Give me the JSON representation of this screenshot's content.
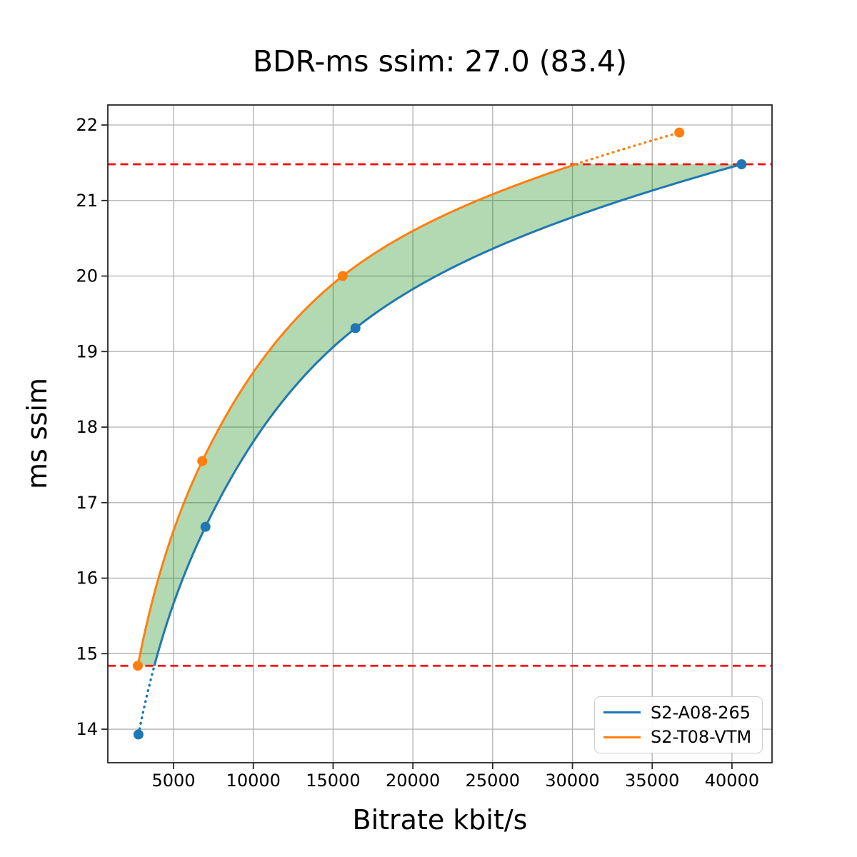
{
  "chart_data": {
    "type": "line",
    "title": "BDR-ms ssim: 27.0 (83.4)",
    "xlabel": "Bitrate kbit/s",
    "ylabel": "ms ssim",
    "xlim": [
      880,
      42510
    ],
    "ylim": [
      13.556,
      22.265
    ],
    "x_ticks": [
      5000,
      10000,
      15000,
      20000,
      25000,
      30000,
      35000,
      40000
    ],
    "y_ticks": [
      14,
      15,
      16,
      17,
      18,
      19,
      20,
      21,
      22
    ],
    "grid": true,
    "grid_color": "#b0b0b0",
    "frame_color": "#262626",
    "legend_position": "lower right",
    "series": [
      {
        "name": "S2-A08-265",
        "color": "#1f77b4",
        "marker": "circle",
        "x": [
          2800,
          7000,
          16400,
          40600
        ],
        "y": [
          13.93,
          16.68,
          19.31,
          21.48
        ]
      },
      {
        "name": "S2-T08-VTM",
        "color": "#ff7f0e",
        "marker": "circle",
        "x": [
          2760,
          6800,
          15600,
          36700
        ],
        "y": [
          14.84,
          17.55,
          20.0,
          21.9
        ]
      }
    ],
    "overlap_hlines": {
      "color": "#ff0000",
      "style": "dashed",
      "values": [
        14.84,
        21.48
      ]
    },
    "fill_between": {
      "color": "#008000",
      "opacity": 0.3,
      "quality_range": [
        14.84,
        21.48
      ]
    },
    "annotation": "solid curves span the common quality interval; dotted tails extend beyond it"
  }
}
